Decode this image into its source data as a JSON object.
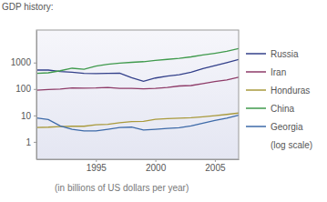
{
  "chart_data": {
    "type": "line",
    "title": "GDP history:",
    "y_label": "(in billions of US dollars per year)",
    "annotation": "(log scale)",
    "log": "y",
    "grid": false,
    "legend": "right",
    "x": [
      1990,
      1991,
      1992,
      1993,
      1994,
      1995,
      1996,
      1997,
      1998,
      1999,
      2000,
      2001,
      2002,
      2003,
      2004,
      2005,
      2006,
      2007
    ],
    "xlim": [
      1990,
      2007
    ],
    "xticks": [
      1995,
      2000,
      2005
    ],
    "ylim": [
      0.22,
      17000
    ],
    "yticks": [
      1,
      10,
      100,
      1000
    ],
    "series": [
      {
        "name": "Russia",
        "color": "#33408a",
        "values": [
          520,
          520,
          460,
          430,
          390,
          380,
          390,
          400,
          270,
          195,
          260,
          310,
          345,
          430,
          590,
          765,
          990,
          1300
        ]
      },
      {
        "name": "Iran",
        "color": "#8e3b68",
        "values": [
          90,
          95,
          100,
          110,
          108,
          110,
          115,
          105,
          105,
          102,
          105,
          115,
          130,
          135,
          160,
          190,
          220,
          280
        ]
      },
      {
        "name": "Honduras",
        "color": "#a99a3c",
        "values": [
          3.5,
          3.6,
          3.8,
          3.9,
          3.9,
          4.4,
          4.6,
          5.3,
          5.8,
          6.0,
          7.1,
          7.6,
          7.9,
          8.2,
          8.9,
          9.8,
          10.9,
          12.3
        ]
      },
      {
        "name": "China",
        "color": "#3f9a4c",
        "values": [
          390,
          410,
          490,
          610,
          560,
          730,
          860,
          950,
          1020,
          1080,
          1200,
          1320,
          1450,
          1640,
          1930,
          2240,
          2660,
          3400
        ]
      },
      {
        "name": "Georgia",
        "color": "#3d6aa8",
        "values": [
          8,
          7,
          4,
          3,
          2.6,
          2.6,
          3,
          3.5,
          3.6,
          2.8,
          3.0,
          3.2,
          3.4,
          4.0,
          5.1,
          6.4,
          7.8,
          10.2
        ]
      }
    ]
  }
}
